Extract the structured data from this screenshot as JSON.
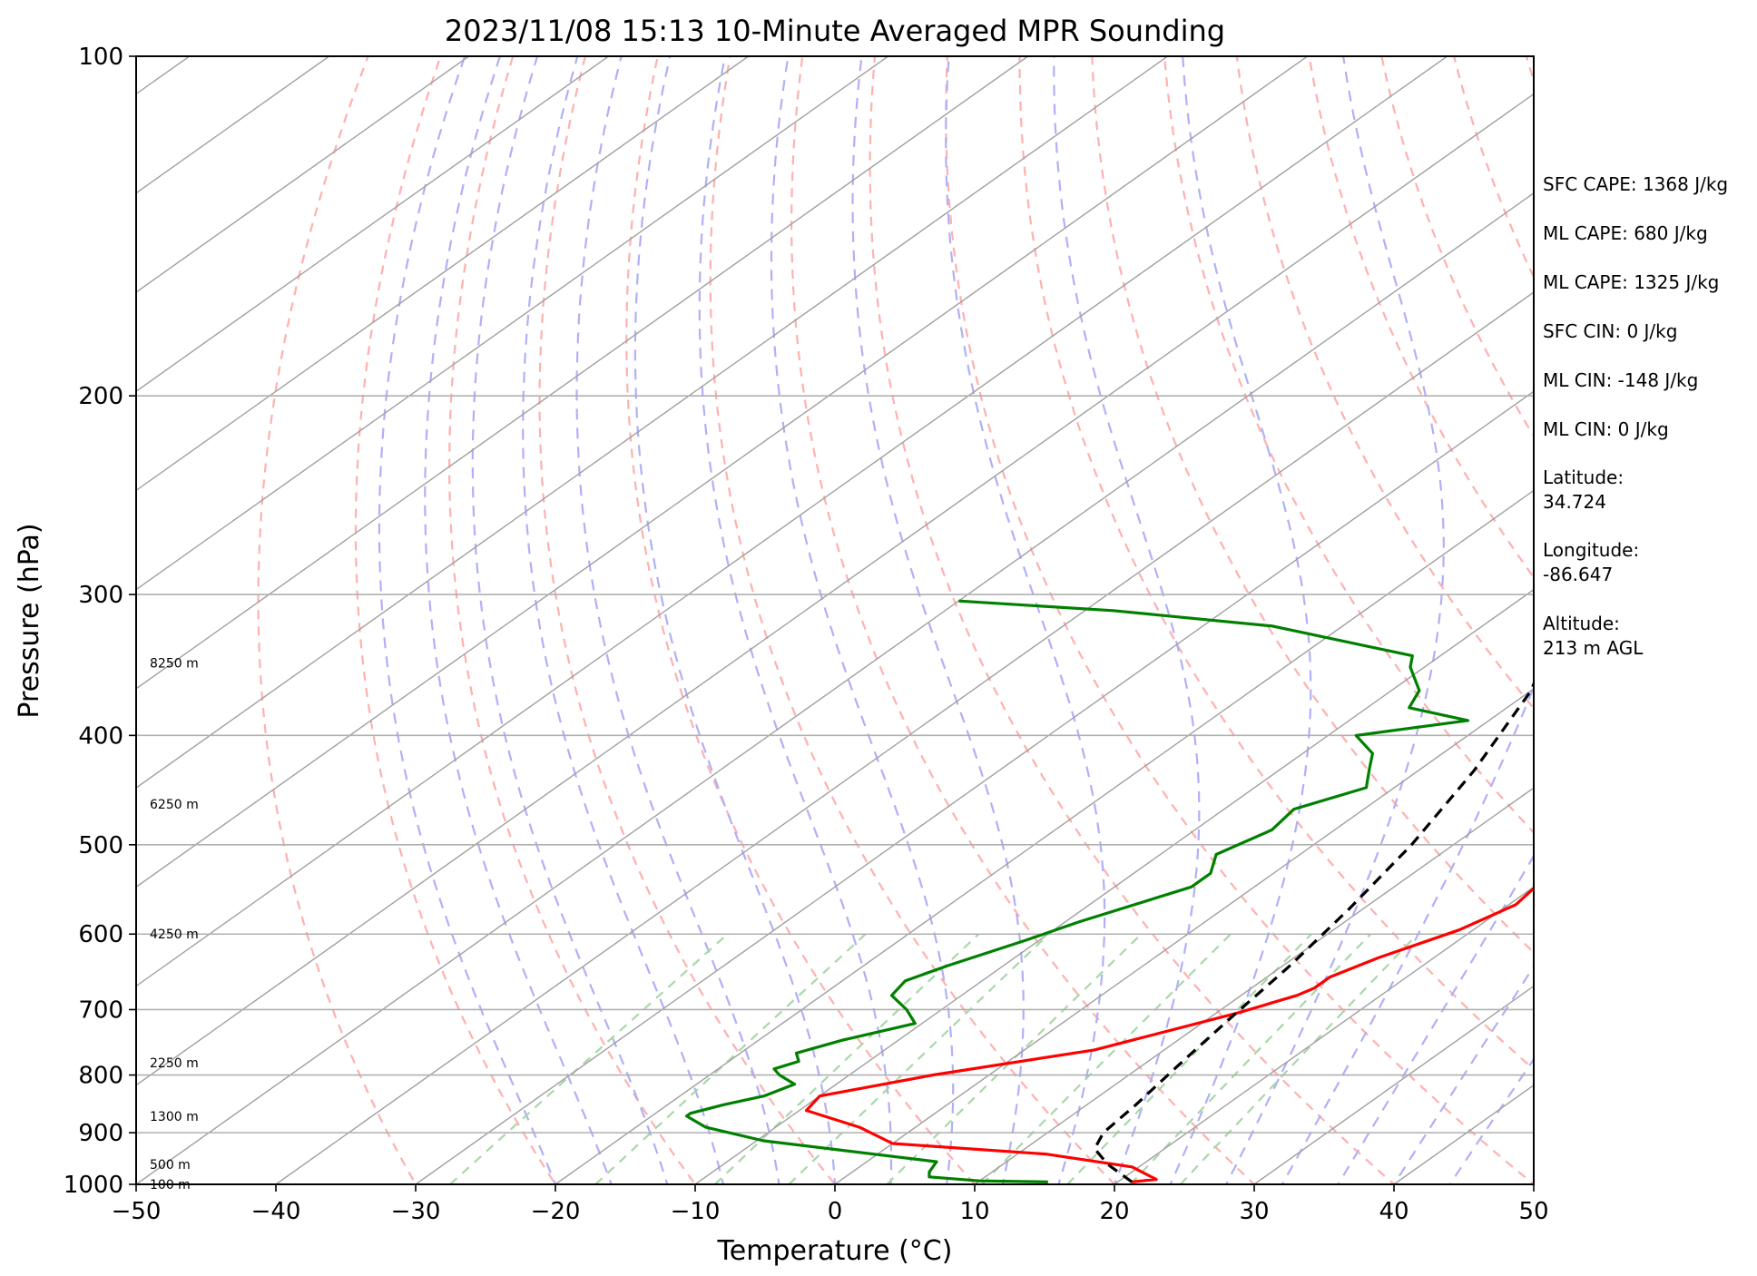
{
  "chart_data": {
    "type": "line",
    "subtype": "skew-t log-p sounding",
    "title": "2023/11/08 15:13 10-Minute Averaged MPR Sounding",
    "xlabel": "Temperature (°C)",
    "ylabel": "Pressure (hPa)",
    "xlim": [
      -50,
      50
    ],
    "ylim": [
      1000,
      100
    ],
    "y_scale": "log",
    "grid": true,
    "x_ticks": [
      "−50",
      "−40",
      "−30",
      "−20",
      "−10",
      "0",
      "10",
      "20",
      "30",
      "40",
      "50"
    ],
    "x_tick_values": [
      -50,
      -40,
      -30,
      -20,
      -10,
      0,
      10,
      20,
      30,
      40,
      50
    ],
    "y_ticks": [
      "100",
      "200",
      "300",
      "400",
      "500",
      "600",
      "700",
      "800",
      "900",
      "1000"
    ],
    "y_tick_values": [
      100,
      200,
      300,
      400,
      500,
      600,
      700,
      800,
      900,
      1000
    ],
    "series": [
      {
        "role": "temperature",
        "color": "#ff0000",
        "style": "solid",
        "points": [
          [
            21.0,
            995
          ],
          [
            22.5,
            990
          ],
          [
            19.5,
            965
          ],
          [
            12.0,
            940
          ],
          [
            0.0,
            920
          ],
          [
            -4.0,
            890
          ],
          [
            -9.5,
            860
          ],
          [
            -10.0,
            835
          ],
          [
            -4.0,
            800
          ],
          [
            5.0,
            760
          ],
          [
            11.5,
            705
          ],
          [
            12.5,
            695
          ],
          [
            14.0,
            680
          ],
          [
            14.5,
            670
          ],
          [
            14.5,
            655
          ],
          [
            16.0,
            630
          ],
          [
            19.0,
            595
          ],
          [
            20.5,
            565
          ],
          [
            20.0,
            540
          ],
          [
            21.0,
            520
          ],
          [
            20.5,
            500
          ],
          [
            19.5,
            480
          ],
          [
            18.0,
            460
          ],
          [
            17.5,
            440
          ],
          [
            16.0,
            420
          ],
          [
            15.0,
            405
          ],
          [
            15.0,
            395
          ],
          [
            14.0,
            380
          ],
          [
            12.5,
            365
          ],
          [
            12.0,
            355
          ],
          [
            12.0,
            340
          ],
          [
            11.5,
            325
          ],
          [
            11.0,
            310
          ],
          [
            10.0,
            300
          ],
          [
            10.0,
            295
          ],
          [
            10.0,
            287
          ]
        ]
      },
      {
        "role": "dewpoint",
        "color": "#008000",
        "style": "solid",
        "points": [
          [
            15.0,
            995
          ],
          [
            10.0,
            993
          ],
          [
            6.0,
            985
          ],
          [
            5.5,
            975
          ],
          [
            5.0,
            955
          ],
          [
            -9.5,
            915
          ],
          [
            -15.0,
            890
          ],
          [
            -17.5,
            870
          ],
          [
            -17.5,
            865
          ],
          [
            -16.0,
            850
          ],
          [
            -14.0,
            835
          ],
          [
            -13.0,
            815
          ],
          [
            -15.0,
            800
          ],
          [
            -16.0,
            790
          ],
          [
            -15.0,
            778
          ],
          [
            -16.0,
            765
          ],
          [
            -14.0,
            745
          ],
          [
            -10.5,
            720
          ],
          [
            -12.5,
            700
          ],
          [
            -15.0,
            680
          ],
          [
            -15.5,
            660
          ],
          [
            -14.0,
            640
          ],
          [
            -11.0,
            608
          ],
          [
            -9.0,
            585
          ],
          [
            -4.5,
            545
          ],
          [
            -4.5,
            530
          ],
          [
            -6.0,
            510
          ],
          [
            -4.5,
            485
          ],
          [
            -5.0,
            465
          ],
          [
            -2.0,
            445
          ],
          [
            -3.5,
            430
          ],
          [
            -5.0,
            415
          ],
          [
            -8.0,
            400
          ],
          [
            -1.5,
            388
          ],
          [
            -7.0,
            378
          ],
          [
            -8.0,
            365
          ],
          [
            -11.0,
            348
          ],
          [
            -12.0,
            340
          ],
          [
            -25.0,
            320
          ],
          [
            -38.0,
            310
          ],
          [
            -50.0,
            304
          ]
        ]
      },
      {
        "role": "parcel profile",
        "color": "#000000",
        "style": "dashed",
        "points": [
          [
            21.0,
            995
          ],
          [
            17.5,
            960
          ],
          [
            15.0,
            930
          ],
          [
            14.0,
            900
          ],
          [
            13.5,
            850
          ],
          [
            12.5,
            780
          ],
          [
            11.5,
            710
          ],
          [
            10.5,
            640
          ],
          [
            9.0,
            570
          ],
          [
            7.0,
            500
          ],
          [
            4.0,
            430
          ],
          [
            0.0,
            365
          ],
          [
            -6.0,
            308
          ],
          [
            -11.0,
            285
          ]
        ]
      }
    ],
    "reference_lines": {
      "isotherms": "solid gray, skewed",
      "dry_adiabats": "dashed red",
      "moist_adiabats": "dashed blue",
      "mixing_ratio_lines": "dashed green, 1000–600 hPa"
    },
    "height_labels": [
      {
        "label": "100 m",
        "pressure": 1000
      },
      {
        "label": "500 m",
        "pressure": 960
      },
      {
        "label": "1300 m",
        "pressure": 870
      },
      {
        "label": "2250 m",
        "pressure": 780
      },
      {
        "label": "4250 m",
        "pressure": 600
      },
      {
        "label": "6250 m",
        "pressure": 460
      },
      {
        "label": "8250 m",
        "pressure": 345
      }
    ],
    "annotations": [
      "SFC CAPE: 1368 J/kg",
      "ML CAPE: 680 J/kg",
      "ML CAPE: 1325 J/kg",
      "SFC CIN: 0 J/kg",
      "ML CIN: -148 J/kg",
      "ML CIN: 0 J/kg",
      "Latitude:",
      "34.724",
      "Longitude:",
      "-86.647",
      "Altitude:",
      "213 m AGL"
    ],
    "colors": {
      "temperature": "#ff0000",
      "dewpoint": "#008000",
      "parcel": "#000000",
      "isotherm": "#a0a0a0",
      "dry_adiabat": "#ffb0b0",
      "moist_adiabat": "#b0b0f8",
      "mixing_ratio": "#a8d8a8",
      "grid": "#b0b0b0"
    }
  }
}
